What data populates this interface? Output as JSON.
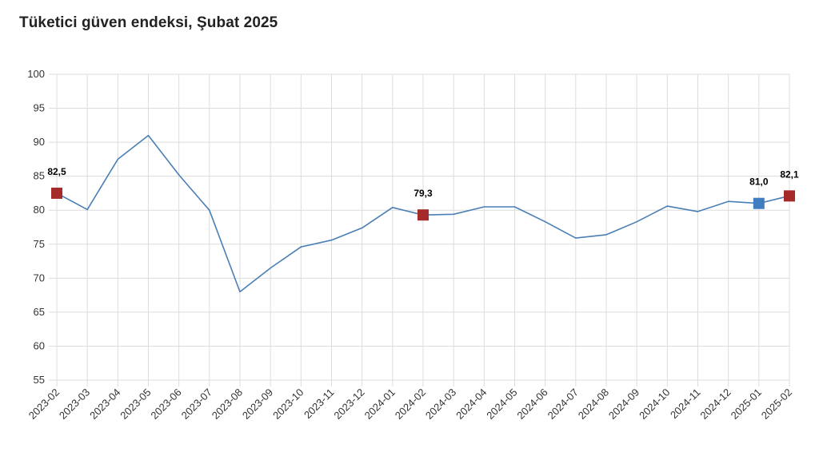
{
  "title": "Tüketici güven endeksi, Şubat 2025",
  "chart_data": {
    "type": "line",
    "title": "Tüketici güven endeksi, Şubat 2025",
    "xlabel": "",
    "ylabel": "",
    "ylim": [
      55,
      100
    ],
    "yticks": [
      55,
      60,
      65,
      70,
      75,
      80,
      85,
      90,
      95,
      100
    ],
    "grid": true,
    "categories": [
      "2023-02",
      "2023-03",
      "2023-04",
      "2023-05",
      "2023-06",
      "2023-07",
      "2023-08",
      "2023-09",
      "2023-10",
      "2023-11",
      "2023-12",
      "2024-01",
      "2024-02",
      "2024-03",
      "2024-04",
      "2024-05",
      "2024-06",
      "2024-07",
      "2024-08",
      "2024-09",
      "2024-10",
      "2024-11",
      "2024-12",
      "2025-01",
      "2025-02"
    ],
    "series": [
      {
        "values": [
          82.5,
          80.1,
          87.5,
          91.0,
          85.2,
          80.0,
          68.0,
          71.5,
          74.6,
          75.6,
          77.4,
          80.4,
          79.3,
          79.4,
          80.5,
          80.5,
          78.3,
          75.9,
          76.4,
          78.3,
          80.6,
          79.8,
          81.3,
          81.0,
          82.1
        ],
        "color": "#4a7fb5"
      }
    ],
    "highlights": [
      {
        "index": 0,
        "label": "82,5",
        "color": "#a52a2a"
      },
      {
        "index": 12,
        "label": "79,3",
        "color": "#a52a2a"
      },
      {
        "index": 23,
        "label": "81,0",
        "color": "#3f7cc0"
      },
      {
        "index": 24,
        "label": "82,1",
        "color": "#a52a2a"
      }
    ]
  }
}
